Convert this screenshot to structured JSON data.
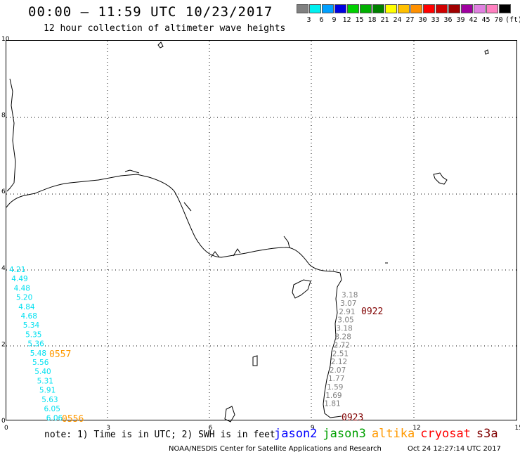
{
  "header": {
    "title": "00:00 – 11:59 UTC 10/23/2017",
    "subtitle": "12 hour collection of altimeter wave heights"
  },
  "colorbar": {
    "labels": [
      "3",
      "6",
      "9",
      "12",
      "15",
      "18",
      "21",
      "24",
      "27",
      "30",
      "33",
      "36",
      "39",
      "42",
      "45",
      "70"
    ],
    "unit": "(ft)",
    "colors": [
      "#808080",
      "#00f0f0",
      "#00a0ff",
      "#0000e0",
      "#00d000",
      "#00b000",
      "#008000",
      "#ffff00",
      "#ffc000",
      "#ff9000",
      "#ff0000",
      "#d00000",
      "#a00000",
      "#a000a0",
      "#e080e0",
      "#ff80c0",
      "#000000"
    ]
  },
  "axes": {
    "x_ticks": [
      "0",
      "3",
      "6",
      "9",
      "12",
      "15"
    ],
    "y_ticks": [
      "0",
      "2",
      "4",
      "6",
      "8",
      "10"
    ]
  },
  "tracks": [
    {
      "values": [
        "4.21",
        "4.49",
        "4.48",
        "5.20",
        "4.84",
        "4.68",
        "5.34",
        "5.35",
        "5.36",
        "5.48",
        "5.56",
        "5.40",
        "5.31",
        "5.91",
        "5.63",
        "6.05",
        "6.06"
      ],
      "color": "#00e0f0",
      "times": [
        "0557",
        "0556"
      ],
      "time_color": "#ff9900"
    },
    {
      "values": [
        "3.18",
        "3.07",
        "2.91",
        "3.05",
        "3.18",
        "3.28",
        "2.72",
        "2.51",
        "2.12",
        "2.07",
        "1.77",
        "1.59",
        "1.69",
        "1.81"
      ],
      "color": "#808080",
      "times": [
        "0922",
        "0923"
      ],
      "time_color": "#800000"
    }
  ],
  "note": "note: 1) Time is in UTC; 2) SWH is in feet",
  "satellites": [
    {
      "name": "jason2",
      "color": "#0000ff"
    },
    {
      "name": "jason3",
      "color": "#00a000"
    },
    {
      "name": "altika",
      "color": "#ff9900"
    },
    {
      "name": "cryosat",
      "color": "#ff0000"
    },
    {
      "name": "s3a",
      "color": "#800000"
    }
  ],
  "credit": "NOAA/NESDIS Center for Satellite Applications and Research",
  "generated": "Oct 24 12:27:14 UTC 2017"
}
